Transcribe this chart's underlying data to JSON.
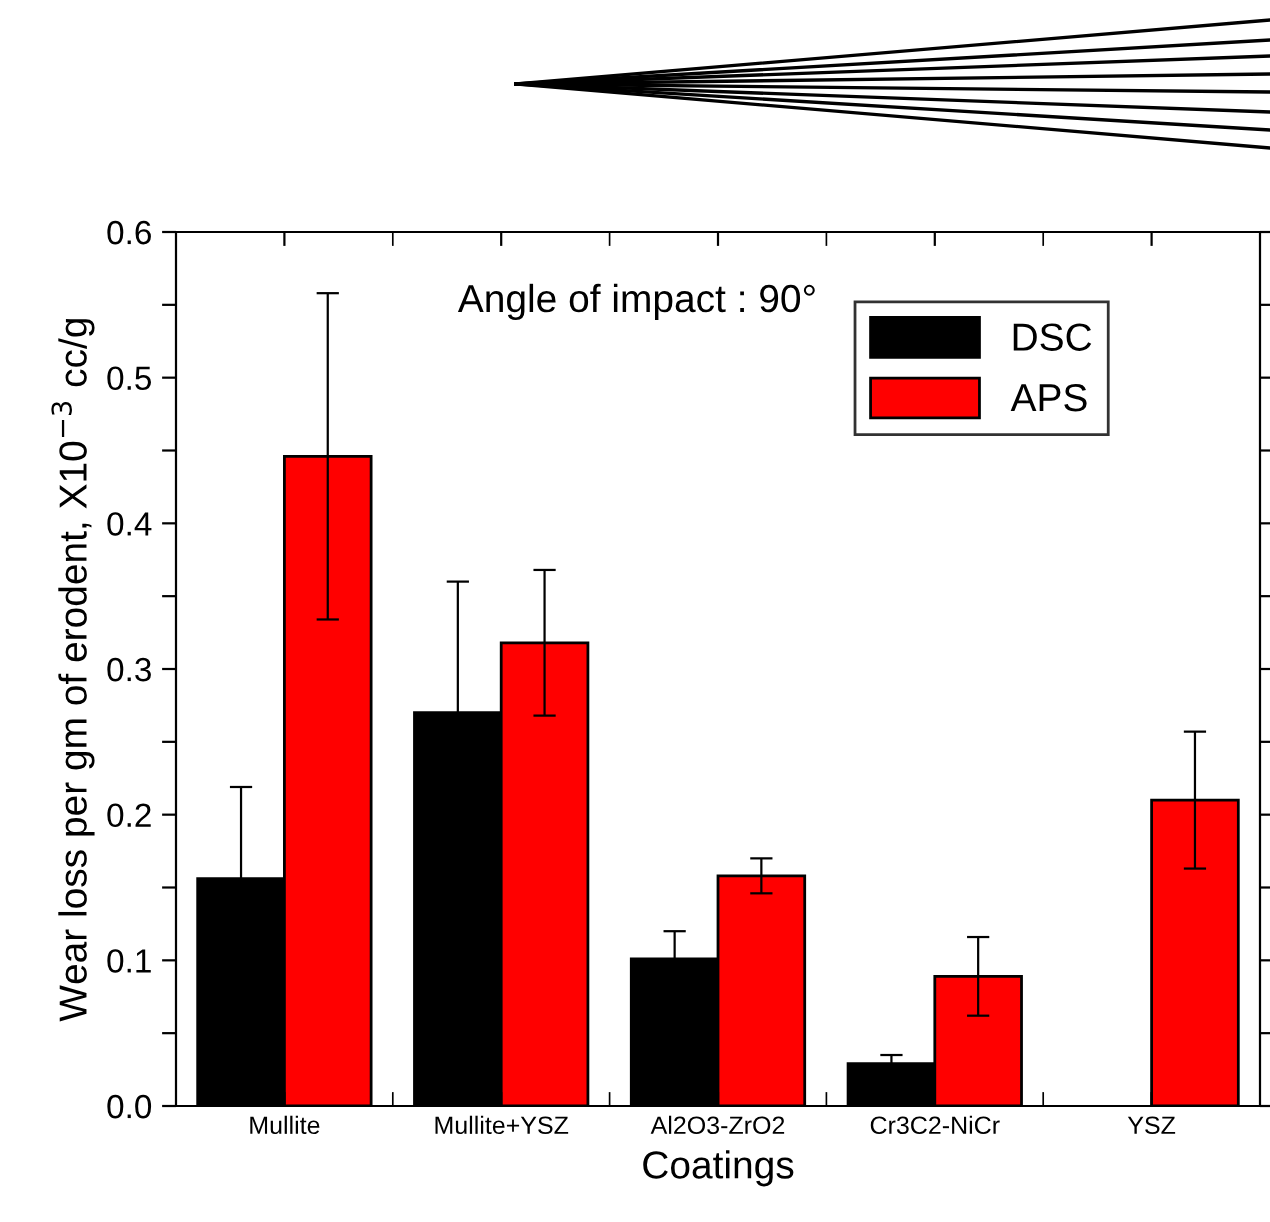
{
  "chart_data": {
    "type": "bar",
    "xlabel": "Coatings",
    "ylabel": "Wear loss per gm of erodent, X10$^{−3}$ cc/g",
    "categories": [
      "Mullite",
      "Mullite+YSZ",
      "Al2O3-ZrO2",
      "Cr3C2-NiCr",
      "YSZ"
    ],
    "series": [
      {
        "name": "DSC",
        "color": "#000000",
        "values": [
          0.156,
          0.27,
          0.101,
          0.029,
          null
        ],
        "errors": [
          0.063,
          0.09,
          0.019,
          0.006,
          null
        ]
      },
      {
        "name": "APS",
        "color": "#ff0000",
        "values": [
          0.446,
          0.318,
          0.158,
          0.089,
          0.21
        ],
        "errors": [
          0.112,
          0.05,
          0.012,
          0.027,
          0.047
        ]
      }
    ],
    "ylim": [
      0,
      0.6
    ],
    "yticks": [
      {
        "value": 0.0,
        "label": "0.0"
      },
      {
        "value": 0.05,
        "label": null
      },
      {
        "value": 0.1,
        "label": "0.1"
      },
      {
        "value": 0.15,
        "label": null
      },
      {
        "value": 0.2,
        "label": "0.2"
      },
      {
        "value": 0.25,
        "label": null
      },
      {
        "value": 0.3,
        "label": "0.3"
      },
      {
        "value": 0.35,
        "label": null
      },
      {
        "value": 0.4,
        "label": "0.4"
      },
      {
        "value": 0.45,
        "label": null
      },
      {
        "value": 0.5,
        "label": "0.5"
      },
      {
        "value": 0.55,
        "label": null
      },
      {
        "value": 0.6,
        "label": "0.6"
      }
    ],
    "annotations": [
      "Angle of impact : 90°"
    ],
    "legend": "top right",
    "grid": false
  }
}
